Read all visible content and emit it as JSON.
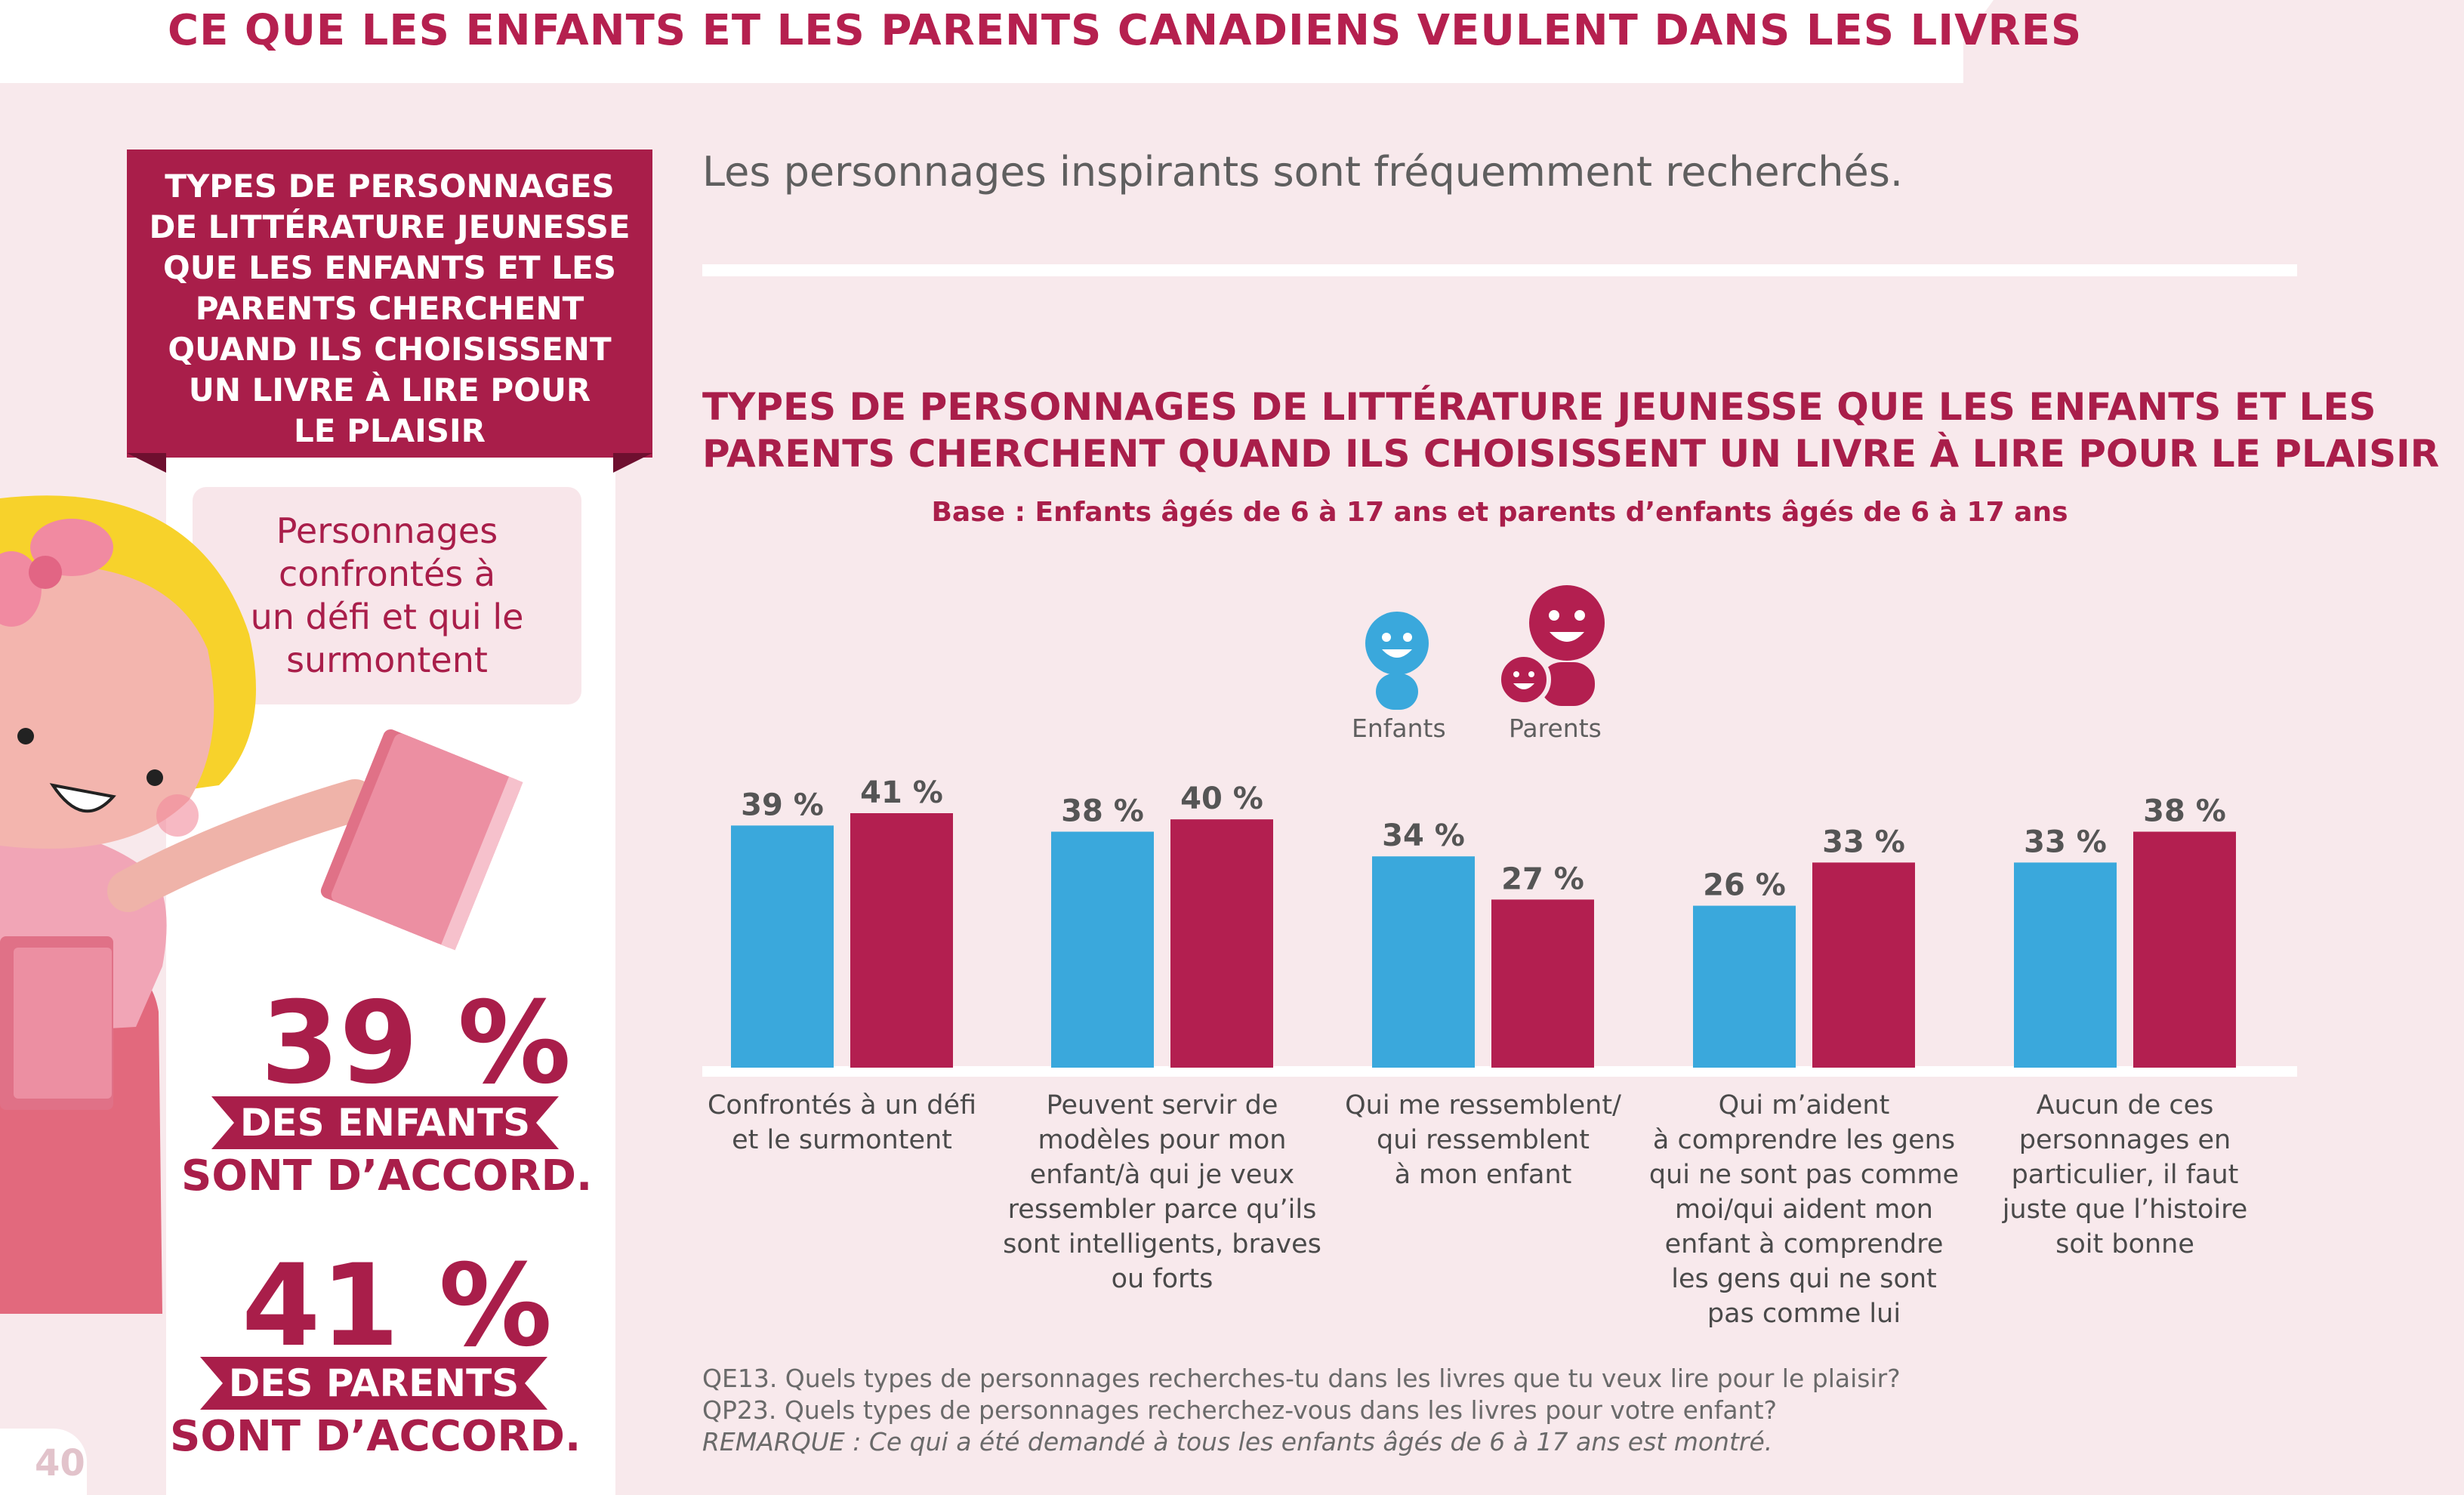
{
  "header": {
    "title": "CE QUE LES ENFANTS ET LES PARENTS CANADIENS VEULENT DANS LES LIVRES"
  },
  "subtitle": "Les personnages inspirants sont fréquemment recherchés.",
  "sidebar": {
    "title": "TYPES DE PERSONNAGES\nDE LITTÉRATURE JEUNESSE\nQUE LES ENFANTS ET LES\nPARENTS CHERCHENT\nQUAND ILS CHOISISSENT\nUN LIVRE À LIRE POUR\nLE PLAISIR",
    "highlight": "Personnages\nconfrontés à\nun défi et qui le\nsurmontent",
    "stat1": {
      "value": "39 %",
      "ribbon": "DES ENFANTS",
      "line": "SONT D’ACCORD."
    },
    "stat2": {
      "value": "41 %",
      "ribbon": "DES PARENTS",
      "line": "SONT D’ACCORD."
    }
  },
  "page_number": "40",
  "colors": {
    "enfants": "#3aa8dc",
    "parents": "#b31f50",
    "accent": "#a91e4a"
  },
  "legend": {
    "enfants": "Enfants",
    "parents": "Parents",
    "enfants_icon": "smiley-child-icon",
    "parents_icon": "smiley-parents-icon"
  },
  "footnotes": {
    "q1": "QE13. Quels types de personnages recherches-tu dans les livres que tu veux lire pour le plaisir?",
    "q2": "QP23. Quels types de personnages recherchez-vous dans les livres pour votre enfant?",
    "note": "REMARQUE : Ce qui a été demandé à tous les enfants âgés de 6 à 17 ans est montré."
  },
  "chart_data": {
    "type": "bar",
    "title_line1": "TYPES DE PERSONNAGES DE LITTÉRATURE JEUNESSE QUE LES ENFANTS ET LES",
    "title_line2": "PARENTS CHERCHENT QUAND ILS CHOISISSENT UN LIVRE À LIRE POUR LE PLAISIR",
    "subtitle": "Base : Enfants âgés de 6 à 17 ans et parents d’enfants âgés de 6 à 17 ans",
    "categories": [
      "Confrontés à un défi\net le surmontent",
      "Peuvent servir de\nmodèles pour mon\nenfant/à qui je veux\nressembler parce qu’ils\nsont intelligents, braves\nou forts",
      "Qui me ressemblent/\nqui ressemblent\nà mon enfant",
      "Qui m’aident\nà comprendre les gens\nqui ne sont pas comme\nmoi/qui aident mon\nenfant à comprendre\nles gens qui ne sont\npas comme lui",
      "Aucun de ces\npersonnages en\nparticulier, il faut\njuste que l’histoire\nsoit bonne"
    ],
    "series": [
      {
        "name": "Enfants",
        "values": [
          39,
          38,
          34,
          26,
          33
        ],
        "labels": [
          "39 %",
          "38 %",
          "34 %",
          "26 %",
          "33 %"
        ]
      },
      {
        "name": "Parents",
        "values": [
          41,
          40,
          27,
          33,
          38
        ],
        "labels": [
          "41 %",
          "40 %",
          "27 %",
          "33 %",
          "38 %"
        ]
      }
    ],
    "ylim": [
      0,
      41
    ],
    "grid": false,
    "legend": "top-center"
  }
}
